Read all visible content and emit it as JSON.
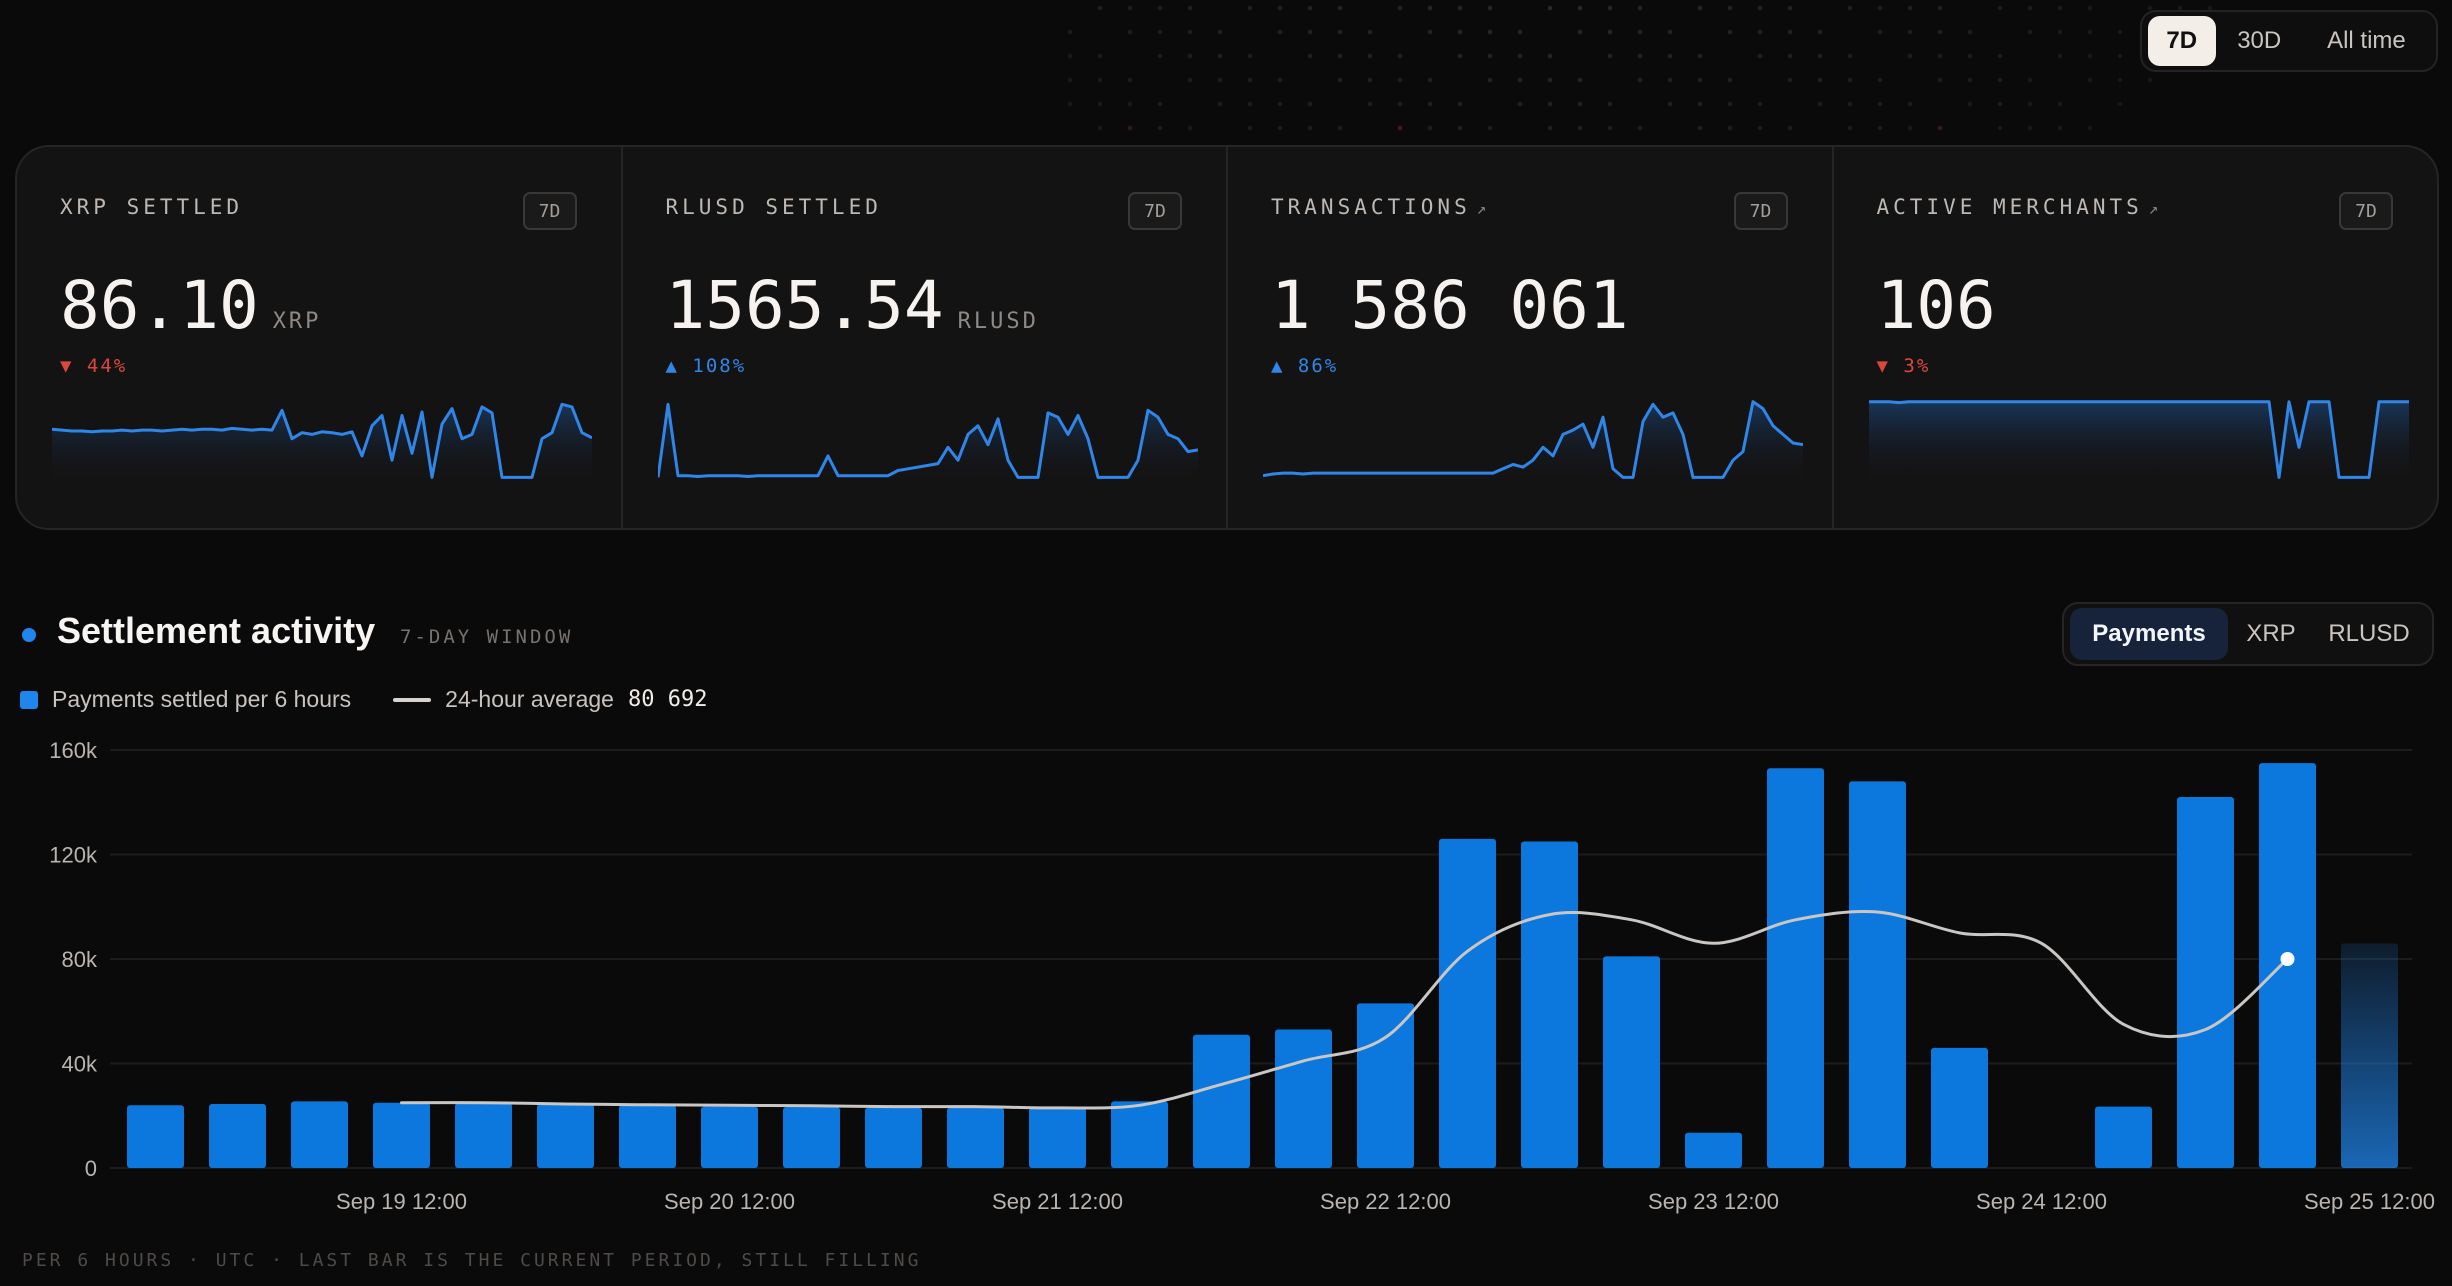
{
  "range_toggle": {
    "options": [
      "7D",
      "30D",
      "All time"
    ],
    "selected": "7D"
  },
  "stats": [
    {
      "label": "XRP SETTLED",
      "link": false,
      "badge": "7D",
      "value": "86.10",
      "unit": "XRP",
      "delta": "▼ 44%",
      "direction": "down",
      "spark": [
        0.66,
        0.65,
        0.64,
        0.64,
        0.63,
        0.64,
        0.64,
        0.65,
        0.64,
        0.65,
        0.65,
        0.64,
        0.65,
        0.66,
        0.65,
        0.66,
        0.66,
        0.65,
        0.67,
        0.66,
        0.65,
        0.66,
        0.65,
        0.88,
        0.55,
        0.62,
        0.6,
        0.63,
        0.62,
        0.6,
        0.63,
        0.35,
        0.7,
        0.82,
        0.3,
        0.82,
        0.38,
        0.86,
        0.1,
        0.72,
        0.9,
        0.55,
        0.6,
        0.92,
        0.85,
        0.1,
        0.1,
        0.1,
        0.1,
        0.55,
        0.62,
        0.95,
        0.92,
        0.62,
        0.56
      ]
    },
    {
      "label": "RLUSD SETTLED",
      "link": false,
      "badge": "7D",
      "value": "1565.54",
      "unit": "RLUSD",
      "delta": "▲ 108%",
      "direction": "up",
      "spark": [
        0.1,
        0.95,
        0.12,
        0.12,
        0.11,
        0.12,
        0.12,
        0.12,
        0.12,
        0.11,
        0.12,
        0.12,
        0.12,
        0.12,
        0.12,
        0.12,
        0.12,
        0.35,
        0.12,
        0.12,
        0.12,
        0.12,
        0.12,
        0.12,
        0.18,
        0.2,
        0.22,
        0.24,
        0.26,
        0.45,
        0.3,
        0.6,
        0.7,
        0.48,
        0.78,
        0.3,
        0.1,
        0.1,
        0.1,
        0.85,
        0.8,
        0.6,
        0.82,
        0.55,
        0.1,
        0.1,
        0.1,
        0.1,
        0.3,
        0.88,
        0.8,
        0.6,
        0.55,
        0.4,
        0.42
      ]
    },
    {
      "label": "TRANSACTIONS",
      "link": true,
      "badge": "7D",
      "value": "1 586 061",
      "unit": "",
      "delta": "▲ 86%",
      "direction": "up",
      "spark": [
        0.12,
        0.14,
        0.15,
        0.15,
        0.14,
        0.15,
        0.15,
        0.15,
        0.15,
        0.15,
        0.15,
        0.15,
        0.15,
        0.15,
        0.15,
        0.15,
        0.15,
        0.15,
        0.15,
        0.15,
        0.15,
        0.15,
        0.15,
        0.15,
        0.2,
        0.25,
        0.22,
        0.3,
        0.45,
        0.35,
        0.6,
        0.65,
        0.72,
        0.45,
        0.8,
        0.2,
        0.1,
        0.1,
        0.75,
        0.95,
        0.8,
        0.85,
        0.6,
        0.1,
        0.1,
        0.1,
        0.1,
        0.3,
        0.4,
        0.98,
        0.9,
        0.7,
        0.6,
        0.5,
        0.48
      ]
    },
    {
      "label": "ACTIVE MERCHANTS",
      "link": true,
      "badge": "7D",
      "value": "106",
      "unit": "",
      "delta": "▼ 3%",
      "direction": "down",
      "spark": [
        0.98,
        0.98,
        0.98,
        0.97,
        0.98,
        0.98,
        0.98,
        0.98,
        0.98,
        0.98,
        0.98,
        0.98,
        0.98,
        0.98,
        0.98,
        0.98,
        0.98,
        0.98,
        0.98,
        0.98,
        0.98,
        0.98,
        0.98,
        0.98,
        0.98,
        0.98,
        0.98,
        0.98,
        0.98,
        0.98,
        0.98,
        0.98,
        0.98,
        0.98,
        0.98,
        0.98,
        0.98,
        0.98,
        0.98,
        0.98,
        0.98,
        0.1,
        0.98,
        0.45,
        0.98,
        0.98,
        0.98,
        0.1,
        0.1,
        0.1,
        0.1,
        0.98,
        0.98,
        0.98,
        0.98
      ]
    }
  ],
  "section": {
    "title": "Settlement activity",
    "subtitle": "7-DAY WINDOW"
  },
  "metric_toggle": {
    "options": [
      "Payments",
      "XRP",
      "RLUSD"
    ],
    "selected": "Payments"
  },
  "legend": {
    "bars": "Payments settled per 6 hours",
    "line": "24-hour average",
    "avg_value": "80 692"
  },
  "footnote": "PER 6 HOURS · UTC · LAST BAR IS THE CURRENT PERIOD, STILL FILLING",
  "colors": {
    "accent": "#1f86ee",
    "down": "#d9483b",
    "line": "#c9c6c3"
  },
  "chart_data": {
    "type": "bar",
    "ylim": [
      0,
      160000
    ],
    "yticks": [
      0,
      40000,
      80000,
      120000,
      160000
    ],
    "ytick_labels": [
      "0",
      "40k",
      "80k",
      "120k",
      "160k"
    ],
    "xtick_labels": [
      "Sep 19 12:00",
      "Sep 20 12:00",
      "Sep 21 12:00",
      "Sep 22 12:00",
      "Sep 23 12:00",
      "Sep 24 12:00",
      "Sep 25 12:00"
    ],
    "xtick_bar_index": [
      3,
      7,
      11,
      15,
      19,
      23,
      27
    ],
    "series": [
      {
        "name": "Payments settled per 6 hours",
        "values": [
          24000,
          24500,
          25500,
          25000,
          24800,
          24500,
          24000,
          23500,
          23300,
          23000,
          23000,
          23000,
          25500,
          51000,
          53000,
          63000,
          126000,
          125000,
          81000,
          13500,
          153000,
          148000,
          46000,
          0,
          23500,
          142000,
          155000,
          86000
        ]
      },
      {
        "name": "24-hour average",
        "values": [
          null,
          null,
          null,
          25000,
          25000,
          24500,
          24200,
          24000,
          23800,
          23500,
          23500,
          23000,
          24000,
          32000,
          41000,
          50000,
          83000,
          97000,
          95000,
          86000,
          95000,
          98000,
          90000,
          86000,
          55000,
          53000,
          80000,
          null
        ]
      }
    ],
    "current_period_index": 27
  }
}
